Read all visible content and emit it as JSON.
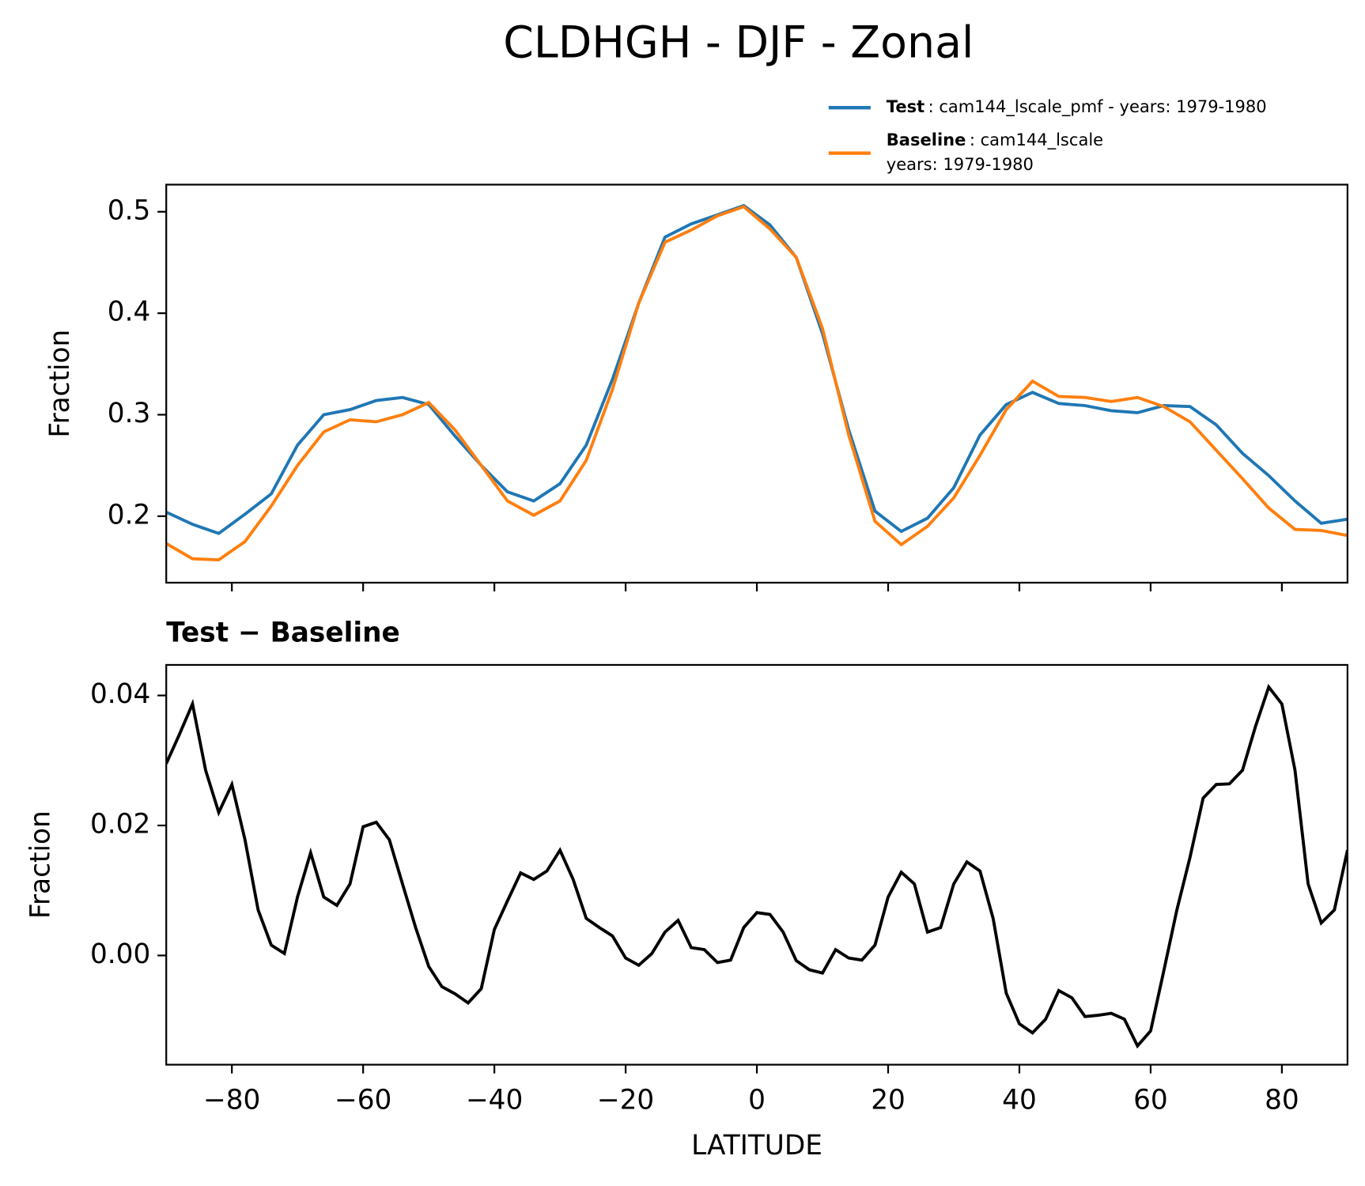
{
  "title": "CLDHGH - DJF - Zonal",
  "chart_data": [
    {
      "type": "line",
      "ylabel": "Fraction",
      "x": [
        -90,
        -86,
        -82,
        -78,
        -74,
        -70,
        -66,
        -62,
        -58,
        -54,
        -50,
        -46,
        -42,
        -38,
        -34,
        -30,
        -26,
        -22,
        -18,
        -14,
        -10,
        -6,
        -2,
        2,
        6,
        10,
        14,
        18,
        22,
        26,
        30,
        34,
        38,
        42,
        46,
        50,
        54,
        58,
        62,
        66,
        70,
        74,
        78,
        82,
        86,
        90
      ],
      "series": [
        {
          "name": "Test",
          "description": [
            ": cam144_lscale_pmf - years: 1979-1980"
          ],
          "color": "#1f77b4",
          "values": [
            0.204,
            0.192,
            0.183,
            0.202,
            0.222,
            0.27,
            0.3,
            0.305,
            0.314,
            0.317,
            0.31,
            0.279,
            0.25,
            0.224,
            0.215,
            0.232,
            0.27,
            0.335,
            0.41,
            0.475,
            0.488,
            0.497,
            0.506,
            0.487,
            0.455,
            0.38,
            0.285,
            0.205,
            0.185,
            0.198,
            0.228,
            0.28,
            0.31,
            0.322,
            0.311,
            0.309,
            0.304,
            0.302,
            0.309,
            0.308,
            0.29,
            0.262,
            0.24,
            0.215,
            0.193,
            0.197
          ]
        },
        {
          "name": "Baseline",
          "description": [
            ": cam144_lscale",
            "years: 1979-1980"
          ],
          "color": "#ff7f0e",
          "values": [
            0.173,
            0.158,
            0.157,
            0.175,
            0.21,
            0.25,
            0.283,
            0.295,
            0.293,
            0.3,
            0.312,
            0.285,
            0.25,
            0.215,
            0.201,
            0.215,
            0.255,
            0.325,
            0.41,
            0.47,
            0.482,
            0.496,
            0.505,
            0.483,
            0.455,
            0.385,
            0.28,
            0.195,
            0.172,
            0.19,
            0.218,
            0.26,
            0.305,
            0.333,
            0.318,
            0.317,
            0.313,
            0.317,
            0.308,
            0.293,
            0.265,
            0.237,
            0.208,
            0.187,
            0.186,
            0.181
          ]
        }
      ],
      "xlim": [
        -90,
        90
      ],
      "xticks": [
        {
          "value": -80,
          "label": "−80"
        },
        {
          "value": -60,
          "label": "−60"
        },
        {
          "value": -40,
          "label": "−40"
        },
        {
          "value": -20,
          "label": "−20"
        },
        0,
        20,
        40,
        60,
        80
      ],
      "ylim": [
        0.1345,
        0.5267
      ],
      "yticks": [
        0.2,
        0.3,
        0.4,
        0.5
      ]
    },
    {
      "type": "line",
      "title": "Test − Baseline",
      "xlabel": "LATITUDE",
      "ylabel": "Fraction",
      "color": "#000000",
      "x": [
        -90,
        -88,
        -86,
        -84,
        -82,
        -80,
        -78,
        -76,
        -74,
        -72,
        -70,
        -68,
        -66,
        -64,
        -62,
        -60,
        -58,
        -56,
        -54,
        -52,
        -50,
        -48,
        -46,
        -44,
        -42,
        -40,
        -38,
        -36,
        -34,
        -32,
        -30,
        -28,
        -26,
        -24,
        -22,
        -20,
        -18,
        -16,
        -14,
        -12,
        -10,
        -8,
        -6,
        -4,
        -2,
        0,
        2,
        4,
        6,
        8,
        10,
        12,
        14,
        16,
        18,
        20,
        22,
        24,
        26,
        28,
        30,
        32,
        34,
        36,
        38,
        40,
        42,
        44,
        46,
        48,
        50,
        52,
        54,
        56,
        58,
        60,
        62,
        64,
        66,
        68,
        70,
        72,
        74,
        76,
        78,
        80,
        82,
        84,
        86,
        88,
        90
      ],
      "values": [
        0.0295,
        0.034,
        0.0387,
        0.0285,
        0.022,
        0.0263,
        0.0178,
        0.007,
        0.0016,
        0.0003,
        0.009,
        0.0158,
        0.009,
        0.0077,
        0.011,
        0.0198,
        0.0205,
        0.0178,
        0.011,
        0.0043,
        -0.0017,
        -0.0048,
        -0.0059,
        -0.0073,
        -0.0051,
        0.004,
        0.0084,
        0.0127,
        0.0117,
        0.013,
        0.0162,
        0.0117,
        0.0057,
        0.0043,
        0.003,
        -0.0004,
        -0.0015,
        0.0003,
        0.0036,
        0.0054,
        0.0012,
        0.0009,
        -0.0011,
        -0.0007,
        0.0043,
        0.0066,
        0.0063,
        0.0036,
        -0.0008,
        -0.0022,
        -0.0027,
        0.0009,
        -0.0004,
        -0.0007,
        0.0016,
        0.009,
        0.0128,
        0.011,
        0.0036,
        0.0043,
        0.011,
        0.0144,
        0.013,
        0.0057,
        -0.0058,
        -0.0105,
        -0.0119,
        -0.0098,
        -0.0054,
        -0.0065,
        -0.0094,
        -0.0092,
        -0.0089,
        -0.0098,
        -0.0139,
        -0.0116,
        -0.0024,
        0.007,
        0.0151,
        0.0242,
        0.0263,
        0.0264,
        0.0285,
        0.0353,
        0.0413,
        0.0387,
        0.0285,
        0.011,
        0.005,
        0.007,
        0.0162
      ],
      "xlim": [
        -90,
        90
      ],
      "xticks": [
        {
          "value": -80,
          "label": "−80"
        },
        {
          "value": -60,
          "label": "−60"
        },
        {
          "value": -40,
          "label": "−40"
        },
        {
          "value": -20,
          "label": "−20"
        },
        0,
        20,
        40,
        60,
        80
      ],
      "ylim": [
        -0.0168,
        0.0447
      ],
      "yticks": [
        {
          "value": 0,
          "label": "0.00"
        },
        0.02,
        0.04
      ]
    }
  ]
}
